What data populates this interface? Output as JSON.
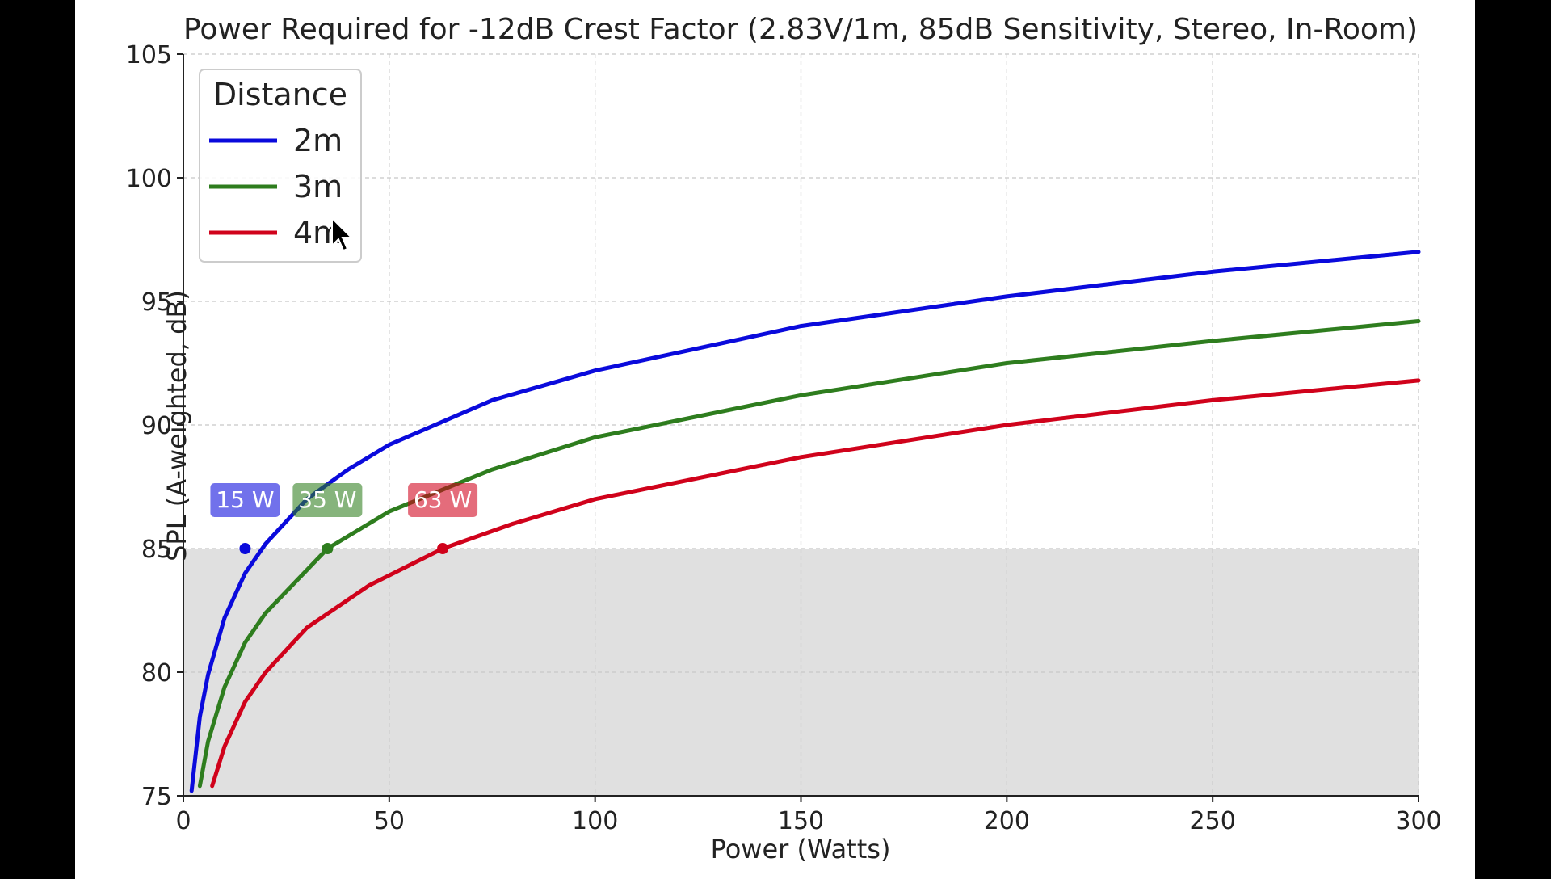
{
  "chart_data": {
    "type": "line",
    "title": "Power Required for -12dB Crest Factor (2.83V/1m, 85dB Sensitivity, Stereo, In-Room)",
    "xlabel": "Power (Watts)",
    "ylabel": "SPL (A-weighted, dB)",
    "xlim": [
      0,
      300
    ],
    "ylim": [
      75,
      105
    ],
    "xticks": [
      0,
      50,
      100,
      150,
      200,
      250,
      300
    ],
    "yticks": [
      75,
      80,
      85,
      90,
      95,
      100,
      105
    ],
    "grid": true,
    "shaded_region": {
      "y_from": 75,
      "y_to": 85,
      "color": "#e0e0e0"
    },
    "legend": {
      "title": "Distance",
      "position": "top-left"
    },
    "series": [
      {
        "name": "2m",
        "color": "#0a0adc",
        "x": [
          2,
          4,
          6,
          10,
          15,
          20,
          30,
          40,
          50,
          75,
          100,
          150,
          200,
          250,
          300
        ],
        "y": [
          75.2,
          78.2,
          79.9,
          82.2,
          84.0,
          85.2,
          87.0,
          88.2,
          89.2,
          91.0,
          92.2,
          94.0,
          95.2,
          96.2,
          97.0
        ],
        "marker": {
          "x": 15,
          "y": 85,
          "label": "15 W"
        }
      },
      {
        "name": "3m",
        "color": "#2e7d1e",
        "x": [
          4,
          6,
          10,
          15,
          20,
          35,
          50,
          75,
          100,
          150,
          200,
          250,
          300
        ],
        "y": [
          75.4,
          77.2,
          79.4,
          81.2,
          82.4,
          85.0,
          86.5,
          88.2,
          89.5,
          91.2,
          92.5,
          93.4,
          94.2
        ],
        "marker": {
          "x": 35,
          "y": 85,
          "label": "35 W"
        }
      },
      {
        "name": "4m",
        "color": "#d0021b",
        "x": [
          7,
          10,
          15,
          20,
          30,
          45,
          63,
          80,
          100,
          150,
          200,
          250,
          300
        ],
        "y": [
          75.4,
          77.0,
          78.8,
          80.0,
          81.8,
          83.5,
          85.0,
          86.0,
          87.0,
          88.7,
          90.0,
          91.0,
          91.8
        ],
        "marker": {
          "x": 63,
          "y": 85,
          "label": "63 W"
        }
      }
    ]
  }
}
